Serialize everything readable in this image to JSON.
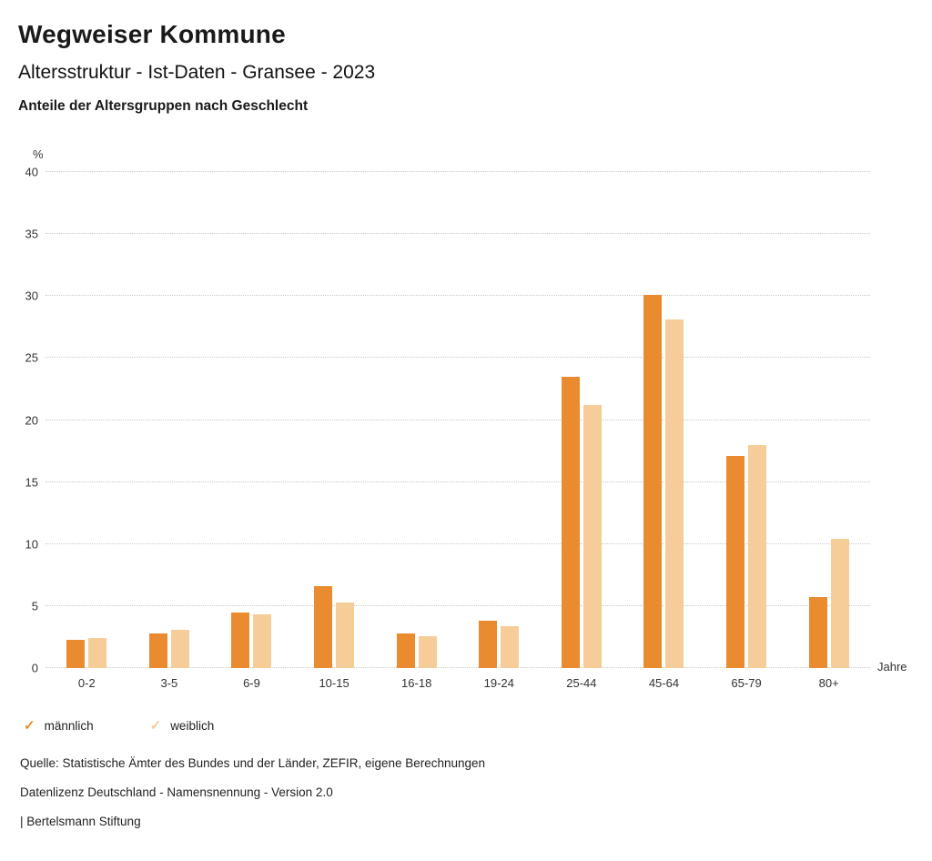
{
  "header": {
    "title": "Wegweiser Kommune",
    "subtitle": "Altersstruktur - Ist-Daten - Gransee - 2023",
    "caption": "Anteile der Altersgruppen nach Geschlecht"
  },
  "chart_data": {
    "type": "bar",
    "title": "Anteile der Altersgruppen nach Geschlecht",
    "categories": [
      "0-2",
      "3-5",
      "6-9",
      "10-15",
      "16-18",
      "19-24",
      "25-44",
      "45-64",
      "65-79",
      "80+"
    ],
    "series": [
      {
        "name": "männlich",
        "color": "#EB8B2F",
        "values": [
          2.3,
          2.8,
          4.5,
          6.6,
          2.8,
          3.8,
          23.5,
          30.1,
          17.1,
          5.7
        ]
      },
      {
        "name": "weiblich",
        "color": "#F6CC99",
        "values": [
          2.4,
          3.1,
          4.3,
          5.3,
          2.6,
          3.4,
          21.2,
          28.1,
          18.0,
          10.4
        ]
      }
    ],
    "ylabel": "%",
    "xlabel": "Jahre",
    "ylim": [
      0,
      40
    ],
    "ytick_step": 5,
    "grid": true,
    "gridline_style": "dotted",
    "legend_position": "bottom"
  },
  "footer": {
    "source": "Quelle: Statistische Ämter des Bundes und der Länder, ZEFIR, eigene Berechnungen",
    "license": "Datenlizenz Deutschland - Namensnennung - Version 2.0",
    "attribution": "| Bertelsmann Stiftung"
  }
}
